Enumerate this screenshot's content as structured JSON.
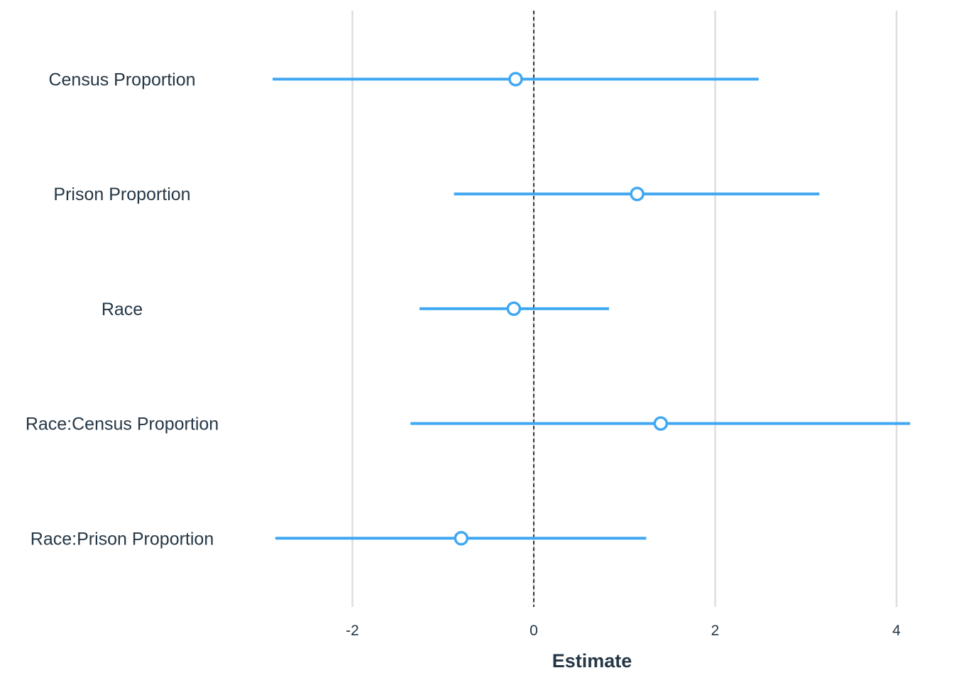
{
  "chart_data": {
    "type": "forest",
    "xlabel": "Estimate",
    "ylabel": "",
    "xlim": [
      -3.0,
      4.2
    ],
    "x_ticks": [
      -2,
      0,
      2,
      4
    ],
    "x_tick_labels": [
      "-2",
      "0",
      "2",
      "4"
    ],
    "reference_line": 0,
    "grid": "vertical-major",
    "categories": [
      "Census Proportion",
      "Prison Proportion",
      "Race",
      "Race:Census Proportion",
      "Race:Prison Proportion"
    ],
    "estimates": [
      -0.2,
      1.14,
      -0.22,
      1.4,
      -0.8
    ],
    "lower": [
      -2.88,
      -0.88,
      -1.26,
      -1.36,
      -2.85
    ],
    "upper": [
      2.48,
      3.15,
      0.83,
      4.15,
      1.24
    ]
  },
  "colors": {
    "series": "#40a8f2",
    "grid": "#dedede",
    "reference": "#000000",
    "text": "#253746",
    "background": "#ffffff"
  }
}
